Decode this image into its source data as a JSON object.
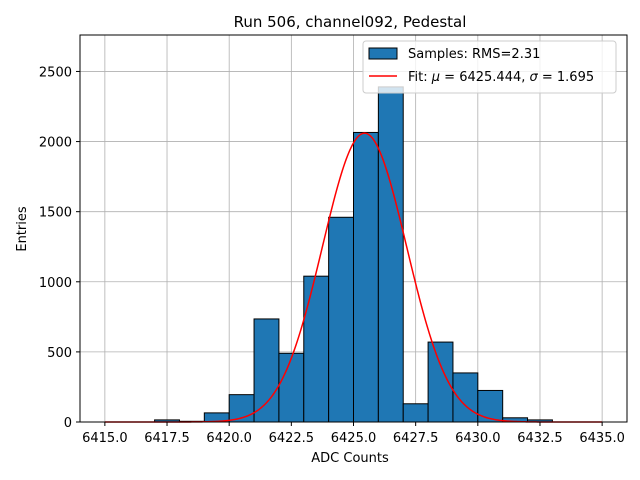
{
  "chart_data": {
    "type": "bar",
    "title": "Run 506, channel092, Pedestal",
    "xlabel": "ADC Counts",
    "ylabel": "Entries",
    "xlim": [
      6414.0,
      6436.0
    ],
    "ylim": [
      0,
      2760
    ],
    "xticks": [
      6415.0,
      6417.5,
      6420.0,
      6422.5,
      6425.0,
      6427.5,
      6430.0,
      6432.5,
      6435.0
    ],
    "xtick_labels": [
      "6415.0",
      "6417.5",
      "6420.0",
      "6422.5",
      "6425.0",
      "6427.5",
      "6430.0",
      "6432.5",
      "6435.0"
    ],
    "yticks": [
      0,
      500,
      1000,
      1500,
      2000,
      2500
    ],
    "ytick_labels": [
      "0",
      "500",
      "1000",
      "1500",
      "2000",
      "2500"
    ],
    "grid": true,
    "legend_position": "top-right",
    "colors": {
      "bar_fill": "#1f77b4",
      "bar_edge": "#000000",
      "fit_line": "#ff0000",
      "grid": "#b0b0b0"
    },
    "histogram": {
      "name": "Samples: RMS=2.31",
      "bins": [
        {
          "left": 6415.0,
          "right": 6416.0,
          "count": 0
        },
        {
          "left": 6416.0,
          "right": 6417.0,
          "count": 0
        },
        {
          "left": 6417.0,
          "right": 6418.0,
          "count": 15
        },
        {
          "left": 6418.0,
          "right": 6419.0,
          "count": 5
        },
        {
          "left": 6419.0,
          "right": 6420.0,
          "count": 65
        },
        {
          "left": 6420.0,
          "right": 6421.0,
          "count": 195
        },
        {
          "left": 6421.0,
          "right": 6422.0,
          "count": 735
        },
        {
          "left": 6422.0,
          "right": 6423.0,
          "count": 490
        },
        {
          "left": 6423.0,
          "right": 6424.0,
          "count": 1040
        },
        {
          "left": 6424.0,
          "right": 6425.0,
          "count": 1460
        },
        {
          "left": 6425.0,
          "right": 6426.0,
          "count": 2065
        },
        {
          "left": 6426.0,
          "right": 6427.0,
          "count": 2390
        },
        {
          "left": 6427.0,
          "right": 6428.0,
          "count": 130
        },
        {
          "left": 6428.0,
          "right": 6429.0,
          "count": 570
        },
        {
          "left": 6429.0,
          "right": 6430.0,
          "count": 350
        },
        {
          "left": 6430.0,
          "right": 6431.0,
          "count": 225
        },
        {
          "left": 6431.0,
          "right": 6432.0,
          "count": 30
        },
        {
          "left": 6432.0,
          "right": 6433.0,
          "count": 15
        }
      ]
    },
    "fit": {
      "name": "Fit: μ = 6425.444, σ = 1.695",
      "label_prefix": "Fit: ",
      "mu_symbol": "μ",
      "mu_text": " = 6425.444, ",
      "sigma_symbol": "σ",
      "sigma_text": " = 1.695",
      "mu": 6425.444,
      "sigma": 1.695,
      "amplitude": 2060,
      "x_range": [
        6415.0,
        6435.0
      ]
    }
  }
}
